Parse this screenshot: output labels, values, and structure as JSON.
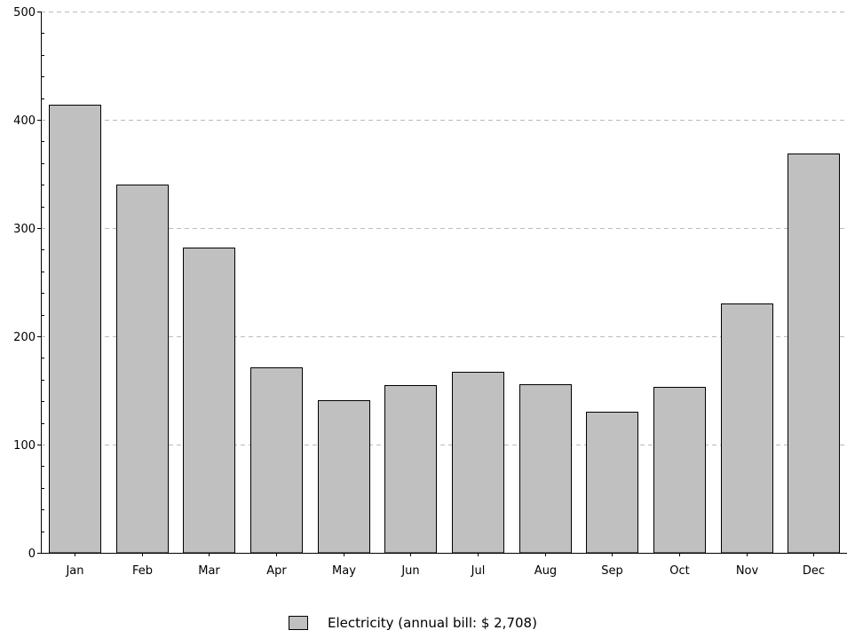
{
  "chart_data": {
    "type": "bar",
    "categories": [
      "Jan",
      "Feb",
      "Mar",
      "Apr",
      "May",
      "Jun",
      "Jul",
      "Aug",
      "Sep",
      "Oct",
      "Nov",
      "Dec"
    ],
    "series": [
      {
        "name": "Electricity (annual bill: $ 2,708)",
        "values": [
          414,
          340,
          282,
          171,
          141,
          155,
          167,
          156,
          130,
          153,
          230,
          369
        ]
      }
    ],
    "title": "",
    "xlabel": "",
    "ylabel": "",
    "ylim": [
      0,
      500
    ],
    "yticks": [
      0,
      100,
      200,
      300,
      400,
      500
    ],
    "grid": true,
    "legend_position": "bottom",
    "colors": {
      "bar_fill": "#c0c0c0",
      "bar_stroke": "#000000",
      "grid": "#bbbbbb"
    }
  }
}
